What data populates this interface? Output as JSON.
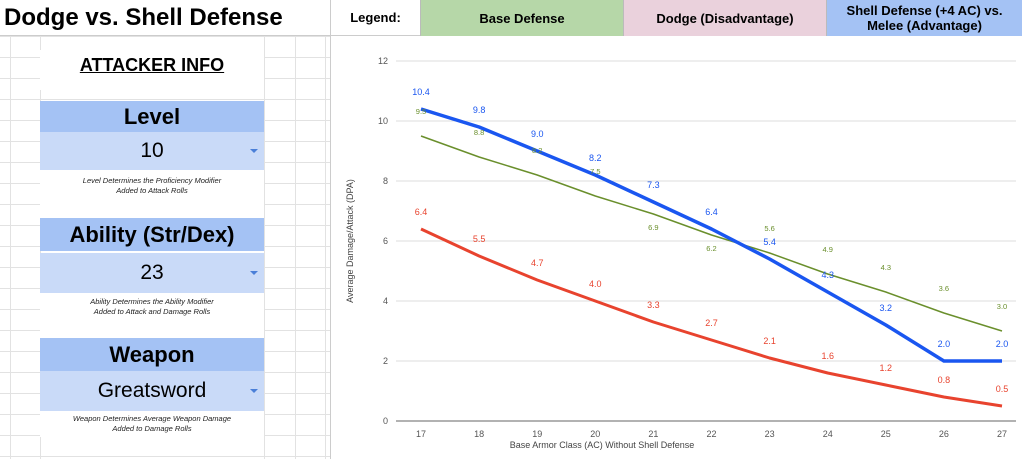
{
  "title": "Dodge vs. Shell Defense",
  "legend": {
    "label": "Legend:",
    "items": [
      {
        "label": "Base Defense",
        "bg": "#b6d7a8"
      },
      {
        "label": "Dodge (Disadvantage)",
        "bg": "#ead1dc"
      },
      {
        "label": "Shell Defense (+4 AC) vs. Melee (Advantage)",
        "bg": "#a4c2f4"
      }
    ]
  },
  "attacker": {
    "heading": "ATTACKER INFO",
    "level": {
      "label": "Level",
      "value": "10",
      "caption1": "Level Determines the Proficiency Modifier",
      "caption2": "Added to Attack Rolls"
    },
    "ability": {
      "label": "Ability (Str/Dex)",
      "value": "23",
      "caption1": "Ability Determines the Ability Modifier",
      "caption2": "Added to Attack and Damage Rolls"
    },
    "weapon": {
      "label": "Weapon",
      "value": "Greatsword",
      "caption1": "Weapon Determines Average Weapon Damage",
      "caption2": "Added to Damage Rolls"
    }
  },
  "chart_data": {
    "type": "line",
    "xlabel": "Base Armor Class (AC) Without Shell Defense",
    "ylabel": "Average Damage/Attack (DPA)",
    "x": [
      17,
      18,
      19,
      20,
      21,
      22,
      23,
      24,
      25,
      26,
      27
    ],
    "ylim": [
      0,
      12
    ],
    "yticks": [
      0,
      2,
      4,
      6,
      8,
      10,
      12
    ],
    "grid": true,
    "series": [
      {
        "color": "#6a8f2c",
        "values": [
          9.5,
          8.8,
          8.2,
          7.5,
          6.9,
          6.2,
          5.6,
          4.9,
          4.3,
          3.6,
          3.0
        ]
      },
      {
        "color": "#1a56f0",
        "values": [
          10.4,
          9.8,
          9.0,
          8.2,
          7.3,
          6.4,
          5.4,
          4.3,
          3.2,
          2.0,
          2.0
        ]
      },
      {
        "color": "#e8432e",
        "values": [
          6.4,
          5.5,
          4.7,
          4.0,
          3.3,
          2.7,
          2.1,
          1.6,
          1.2,
          0.8,
          0.5
        ]
      }
    ]
  }
}
